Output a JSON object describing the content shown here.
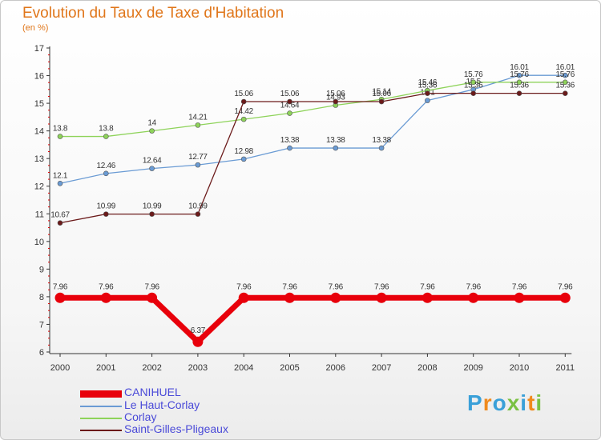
{
  "title": "Evolution du Taux de Taxe d'Habitation",
  "subtitle": "(en %)",
  "brand": "Proxiti",
  "chart_data": {
    "type": "line",
    "x": [
      "2000",
      "2001",
      "2002",
      "2003",
      "2004",
      "2005",
      "2006",
      "2007",
      "2008",
      "2009",
      "2010",
      "2011"
    ],
    "ylim": [
      6,
      17
    ],
    "yticks": [
      6,
      7,
      8,
      9,
      10,
      11,
      12,
      13,
      14,
      15,
      16,
      17
    ],
    "grid": false,
    "legend_position": "bottom-left",
    "series": [
      {
        "name": "CANIHUEL",
        "color": "#e8000b",
        "values": [
          7.96,
          7.96,
          7.96,
          6.37,
          7.96,
          7.96,
          7.96,
          7.96,
          7.96,
          7.96,
          7.96,
          7.96
        ],
        "labels": [
          "7.96",
          "7.96",
          "7.96",
          "6.37",
          "7.96",
          "7.96",
          "7.96",
          "7.96",
          "7.96",
          "7.96",
          "7.96",
          "7.96"
        ]
      },
      {
        "name": "Le Haut-Corlay",
        "color": "#6a9bd4",
        "values": [
          12.1,
          12.46,
          12.64,
          12.77,
          12.98,
          13.38,
          13.38,
          13.38,
          15.1,
          15.5,
          16.01,
          16.01
        ],
        "labels": [
          "12.1",
          "12.46",
          "12.64",
          "12.77",
          "12.98",
          "13.38",
          "13.38",
          "13.38",
          "15.1",
          "15.5",
          "16.01",
          "16.01"
        ]
      },
      {
        "name": "Corlay",
        "color": "#8ed35a",
        "values": [
          13.8,
          13.8,
          14,
          14.21,
          14.42,
          14.64,
          14.93,
          15.14,
          15.46,
          15.76,
          15.76,
          15.76
        ],
        "labels": [
          "13.8",
          "13.8",
          "14",
          "14.21",
          "14.42",
          "14.64",
          "14.93",
          "15.14",
          "15.46",
          "15.76",
          "15.76",
          "15.76"
        ]
      },
      {
        "name": "Saint-Gilles-Pligeaux",
        "color": "#6b1a1a",
        "values": [
          10.67,
          10.99,
          10.99,
          10.99,
          15.06,
          15.06,
          15.06,
          15.06,
          15.36,
          15.36,
          15.36,
          15.36
        ],
        "labels": [
          "10.67",
          "10.99",
          "10.99",
          "10.99",
          "15.06",
          "15.06",
          "15.06",
          "15.06",
          "15.36",
          "15.36",
          "15.36",
          "15.36"
        ]
      }
    ]
  }
}
